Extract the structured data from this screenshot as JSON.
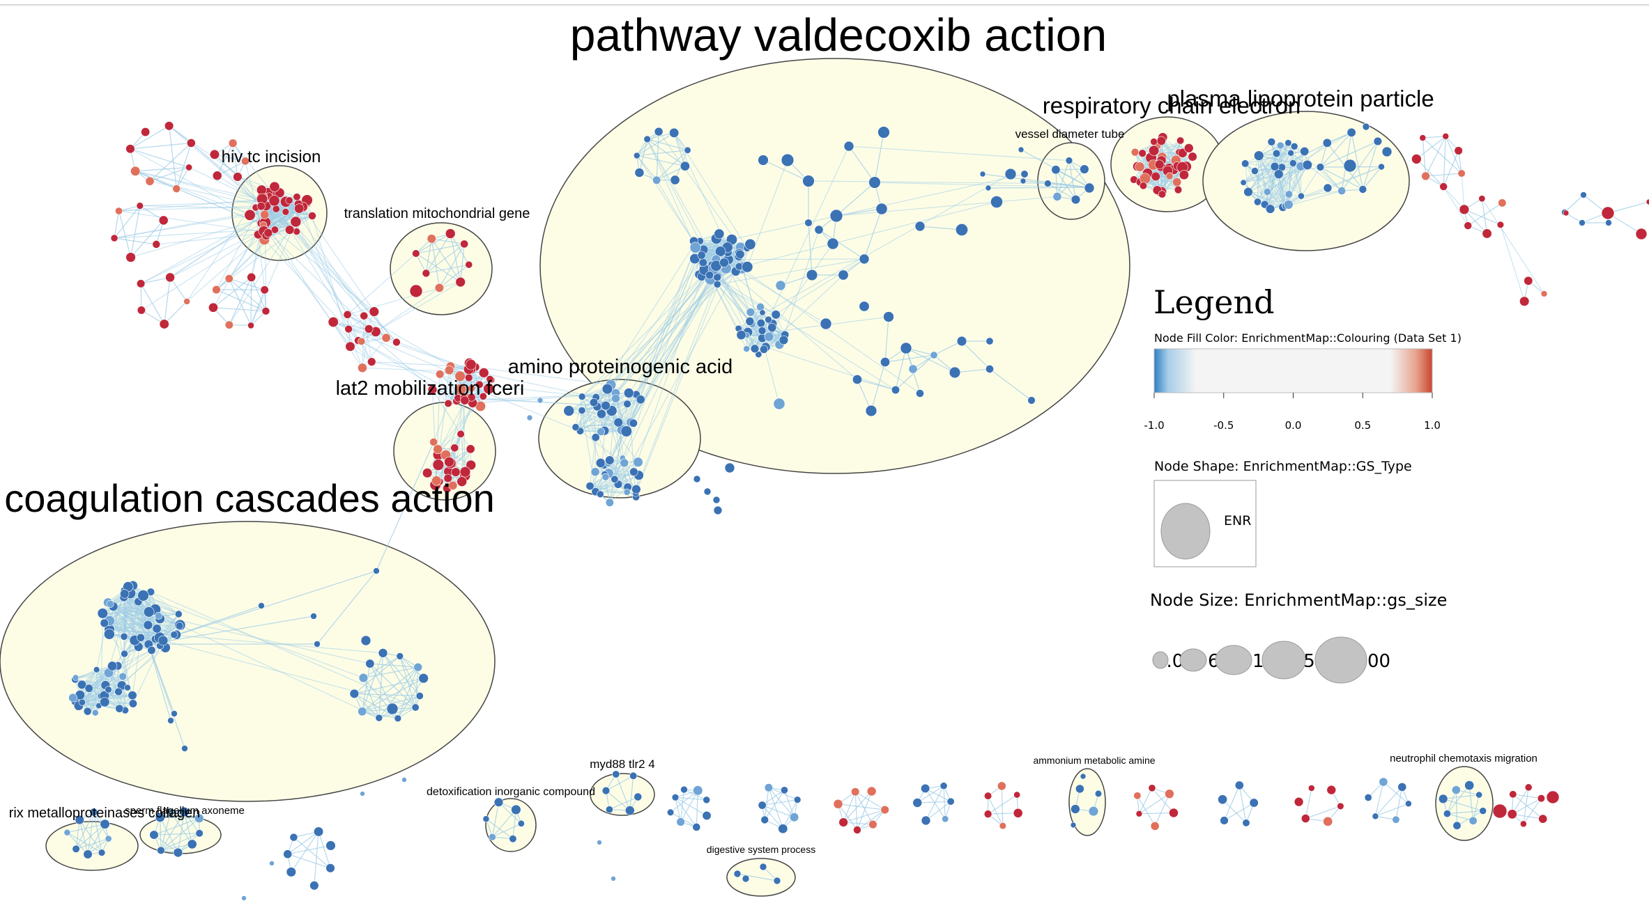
{
  "clusters": {
    "valdecoxib": "pathway valdecoxib action",
    "coagulation": "coagulation cascades action",
    "respiratory": "respiratory chain electron",
    "plasma": "plasma lipoprotein particle",
    "hiv": "hiv tc incision",
    "translation": "translation mitochondrial gene",
    "amino": "amino proteinogenic acid",
    "lat2": "lat2 mobilization fceri",
    "vessel": "vessel diameter tube",
    "matrix": "rix metalloproteinases collagen",
    "sperm": "sperm flagellum axoneme",
    "detox": "detoxification inorganic compound",
    "myd88": "myd88 tlr2 4",
    "digestive": "digestive system process",
    "ammonium": "ammonium metabolic amine",
    "neutrophil": "neutrophil chemotaxis migration"
  },
  "legend": {
    "title": "Legend",
    "fill_label": "Node Fill Color:  EnrichmentMap::Colouring (Data Set 1)",
    "ticks": [
      "-1.0",
      "-0.5",
      "0.0",
      "0.5",
      "1.0"
    ],
    "shape_label": "Node Shape:  EnrichmentMap::GS_Type",
    "shape_name": "ENR",
    "size_label": "Node Size:  EnrichmentMap::gs_size",
    "size_values": [
      "2.00",
      "6",
      "1.",
      ".5",
      "00"
    ]
  },
  "colors": {
    "blue": "#3a72b4",
    "lightblue": "#6fa4d4",
    "red": "#c0273a",
    "salmon": "#e0705c",
    "edge": "#9ccbe6",
    "hull": "#fdfde6",
    "gradient": [
      "#2f7fc1",
      "#a7cde8",
      "#f4f4f4",
      "#f4f4f4",
      "#f4f4f4",
      "#e8a590",
      "#c9462f"
    ]
  }
}
